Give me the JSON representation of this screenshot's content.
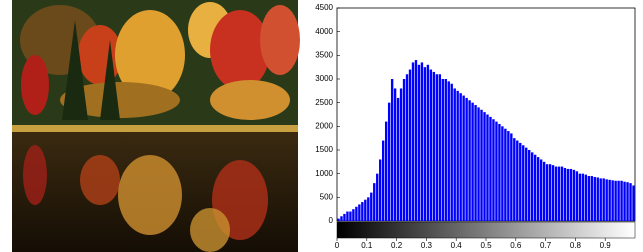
{
  "chart_data": {
    "type": "histogram",
    "color": "#0000ff",
    "bins": [
      0,
      0.01,
      0.02,
      0.03,
      0.04,
      0.05,
      0.06,
      0.07,
      0.08,
      0.09,
      0.1,
      0.11,
      0.12,
      0.13,
      0.14,
      0.15,
      0.16,
      0.17,
      0.18,
      0.19,
      0.2,
      0.21,
      0.22,
      0.23,
      0.24,
      0.25,
      0.26,
      0.27,
      0.28,
      0.29,
      0.3,
      0.31,
      0.32,
      0.33,
      0.34,
      0.35,
      0.36,
      0.37,
      0.38,
      0.39,
      0.4,
      0.41,
      0.42,
      0.43,
      0.44,
      0.45,
      0.46,
      0.47,
      0.48,
      0.49,
      0.5,
      0.51,
      0.52,
      0.53,
      0.54,
      0.55,
      0.56,
      0.57,
      0.58,
      0.59,
      0.6,
      0.61,
      0.62,
      0.63,
      0.64,
      0.65,
      0.66,
      0.67,
      0.68,
      0.69,
      0.7,
      0.71,
      0.72,
      0.73,
      0.74,
      0.75,
      0.76,
      0.77,
      0.78,
      0.79,
      0.8,
      0.81,
      0.82,
      0.83,
      0.84,
      0.85,
      0.86,
      0.87,
      0.88,
      0.89,
      0.9,
      0.91,
      0.92,
      0.93,
      0.94,
      0.95,
      0.96,
      0.97,
      0.98,
      0.99,
      1
    ],
    "values": [
      50,
      100,
      150,
      200,
      200,
      250,
      300,
      350,
      400,
      450,
      500,
      600,
      800,
      1000,
      1300,
      1700,
      2100,
      2500,
      3000,
      2800,
      2600,
      2800,
      3000,
      3100,
      3200,
      3350,
      3400,
      3300,
      3350,
      3250,
      3300,
      3200,
      3150,
      3100,
      3100,
      3000,
      3000,
      2950,
      2900,
      2800,
      2750,
      2700,
      2650,
      2600,
      2550,
      2500,
      2450,
      2400,
      2350,
      2300,
      2250,
      2200,
      2150,
      2100,
      2050,
      2000,
      1950,
      1900,
      1850,
      1750,
      1700,
      1650,
      1600,
      1550,
      1500,
      1450,
      1400,
      1350,
      1300,
      1250,
      1200,
      1200,
      1180,
      1150,
      1150,
      1150,
      1120,
      1100,
      1100,
      1080,
      1050,
      1000,
      1000,
      980,
      950,
      950,
      930,
      920,
      900,
      900,
      880,
      870,
      860,
      850,
      850,
      850,
      830,
      820,
      800,
      750
    ],
    "xlim": [
      0,
      1
    ],
    "ylim": [
      0,
      4500
    ],
    "xticks": [
      0,
      0.1,
      0.2,
      0.3,
      0.4,
      0.5,
      0.6,
      0.7,
      0.8,
      0.9
    ],
    "yticks": [
      0,
      500,
      1000,
      1500,
      2000,
      2500,
      3000,
      3500,
      4000,
      4500
    ]
  }
}
